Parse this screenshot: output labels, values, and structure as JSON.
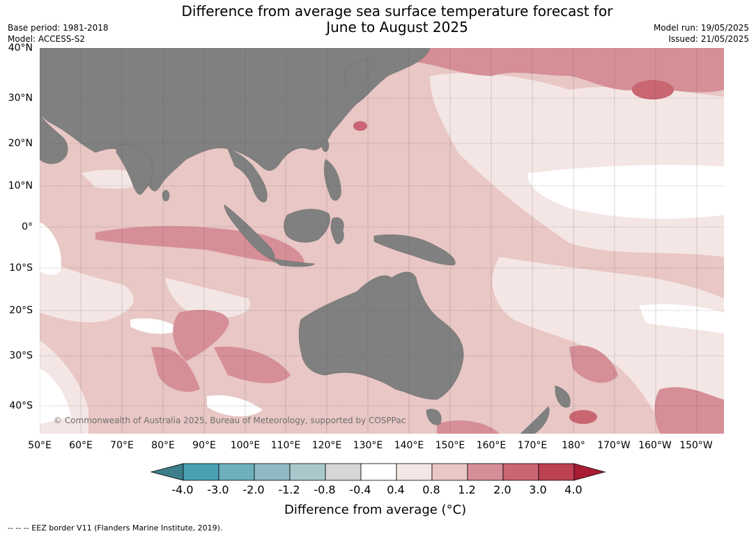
{
  "title_line1": "Difference from average sea surface temperature forecast for",
  "title_line2": "June to August 2025",
  "base_period": "Base period: 1981-2018",
  "model": "Model: ACCESS-S2",
  "model_run": "Model run: 19/05/2025",
  "issued": "Issued: 21/05/2025",
  "latitude_labels": [
    "40°N",
    "30°N",
    "20°N",
    "10°N",
    "0°",
    "10°S",
    "20°S",
    "30°S",
    "40°S"
  ],
  "longitude_labels": [
    "50°E",
    "60°E",
    "70°E",
    "80°E",
    "90°E",
    "100°E",
    "110°E",
    "120°E",
    "130°E",
    "140°E",
    "150°E",
    "160°E",
    "170°E",
    "180°",
    "170°W",
    "160°W",
    "150°W"
  ],
  "copyright": "© Commonwealth of Australia 2025, Bureau of Meteorology, supported by COSPPac",
  "colorbar": {
    "ticks": [
      "-4.0",
      "-3.0",
      "-2.0",
      "-1.2",
      "-0.8",
      "-0.4",
      "0.4",
      "0.8",
      "1.2",
      "2.0",
      "3.0",
      "4.0"
    ],
    "colors": [
      "#3d7f8a",
      "#4aa0b3",
      "#6fb0be",
      "#8fbac5",
      "#a9c8cc",
      "#d6d6d6",
      "#ffffff",
      "#f4e6e5",
      "#e8c7c4",
      "#d68e97",
      "#c96672",
      "#be4252",
      "#a91c34"
    ],
    "label": "Difference from average (",
    "label_unit": "°C)"
  },
  "footnote": "--  --  -- EEZ border V11 (Flanders Marine Institute, 2019).",
  "colors": {
    "land": "#808080",
    "ocean_base": "#e8c7c4"
  }
}
